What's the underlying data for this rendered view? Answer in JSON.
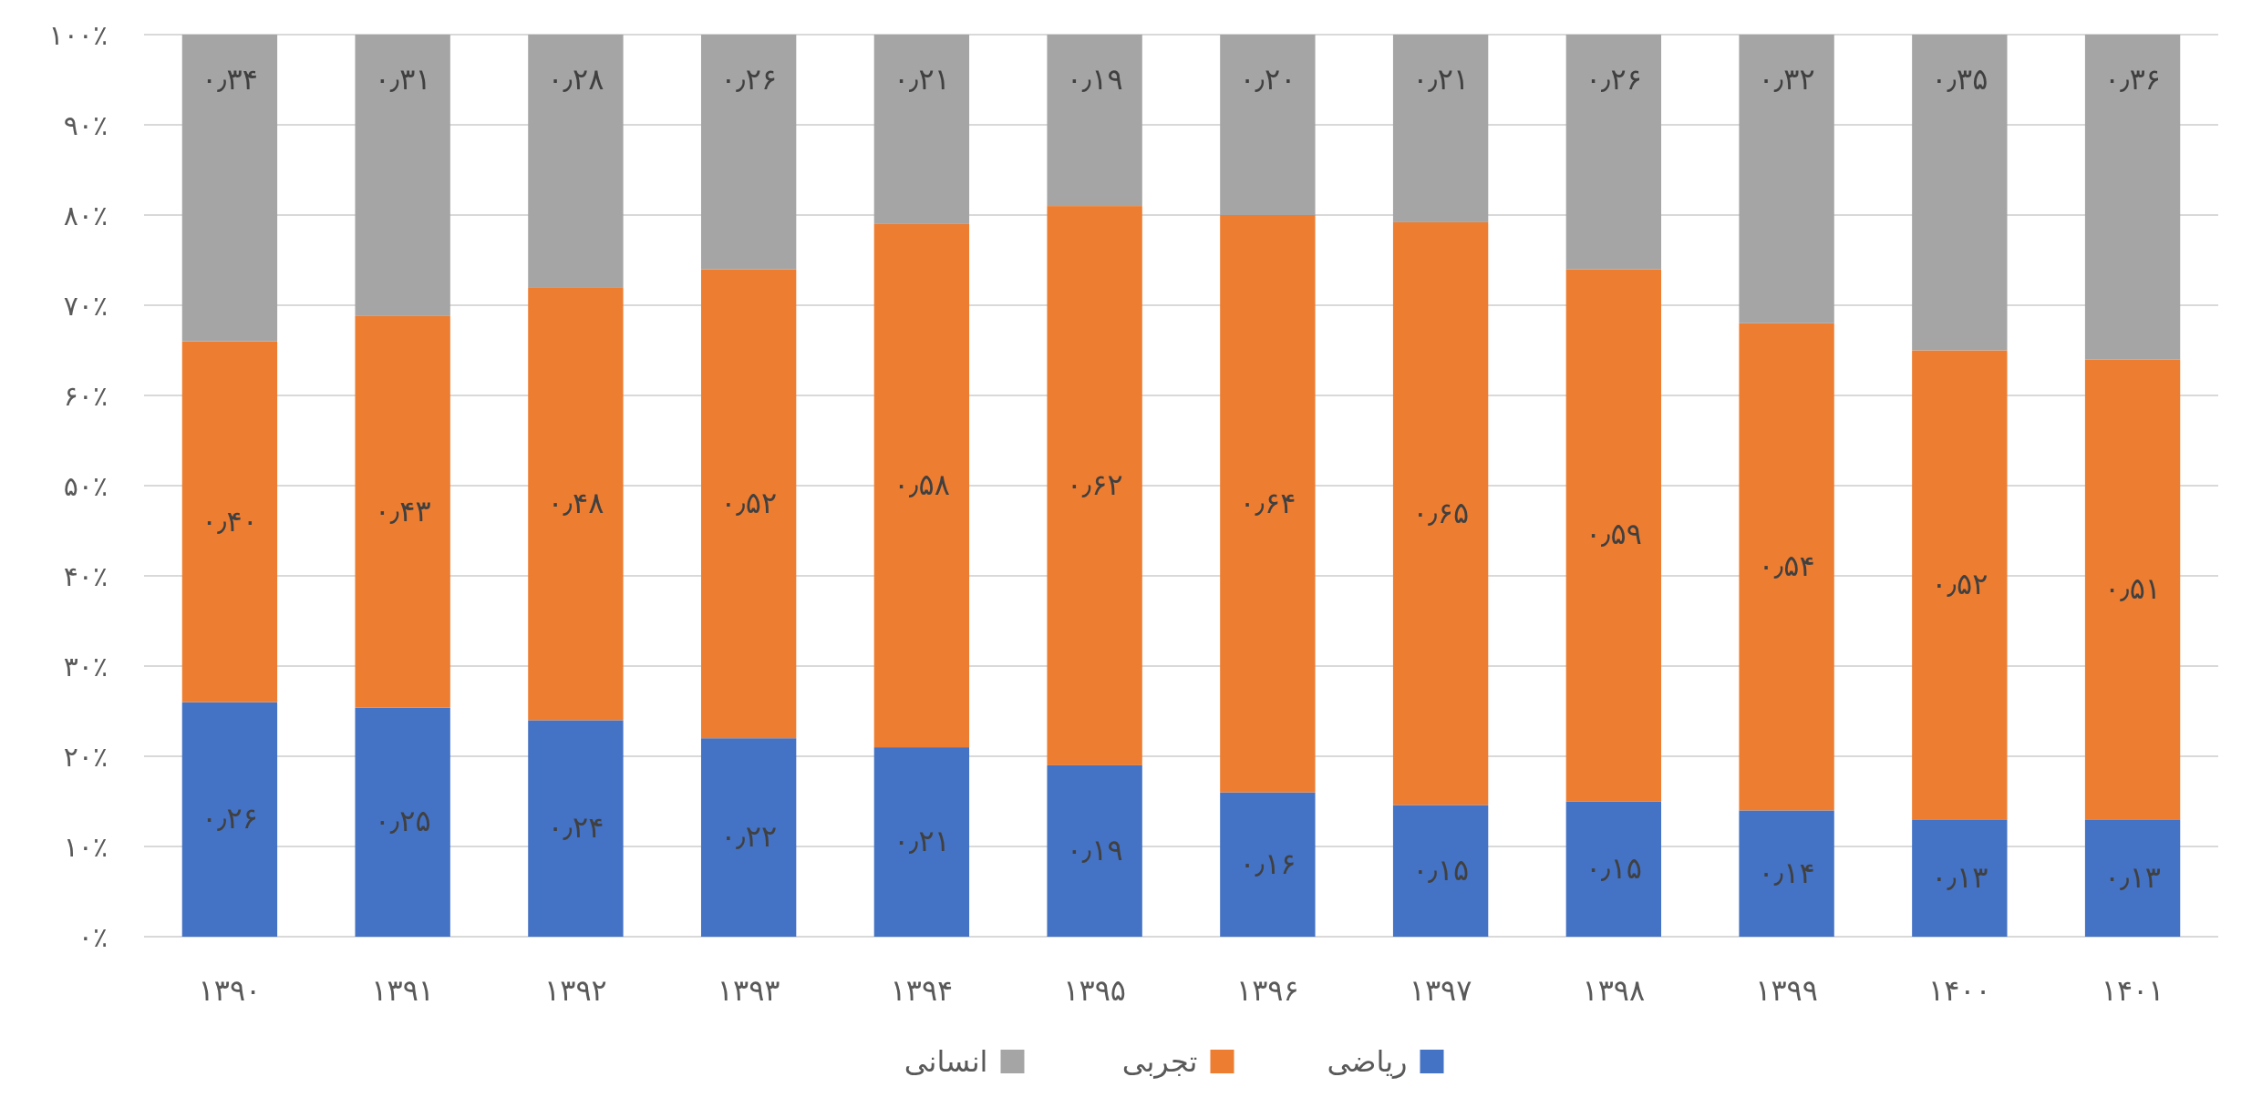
{
  "chart_data": {
    "type": "bar",
    "stacked": true,
    "categories": [
      "۱۳۹۰",
      "۱۳۹۱",
      "۱۳۹۲",
      "۱۳۹۳",
      "۱۳۹۴",
      "۱۳۹۵",
      "۱۳۹۶",
      "۱۳۹۷",
      "۱۳۹۸",
      "۱۳۹۹",
      "۱۴۰۰",
      "۱۴۰۱"
    ],
    "series": [
      {
        "name": "ریاضی",
        "color": "#4472c4",
        "values": [
          26,
          25.4,
          24,
          22,
          21,
          19,
          16,
          14.6,
          15,
          14,
          13,
          13
        ],
        "value_labels": [
          "۰٫۲۶",
          "۰٫۲۵",
          "۰٫۲۴",
          "۰٫۲۲",
          "۰٫۲۱",
          "۰٫۱۹",
          "۰٫۱۶",
          "۰٫۱۵",
          "۰٫۱۵",
          "۰٫۱۴",
          "۰٫۱۳",
          "۰٫۱۳"
        ]
      },
      {
        "name": "تجربی",
        "color": "#ed7d31",
        "values": [
          40,
          43.4,
          48,
          52,
          58,
          62,
          64,
          64.6,
          59,
          54,
          52,
          51
        ],
        "value_labels": [
          "۰٫۴۰",
          "۰٫۴۳",
          "۰٫۴۸",
          "۰٫۵۲",
          "۰٫۵۸",
          "۰٫۶۲",
          "۰٫۶۴",
          "۰٫۶۵",
          "۰٫۵۹",
          "۰٫۵۴",
          "۰٫۵۲",
          "۰٫۵۱"
        ]
      },
      {
        "name": "انسانی",
        "color": "#a5a5a5",
        "values": [
          34,
          31.2,
          28,
          26,
          21,
          19,
          20,
          20.8,
          26,
          32,
          35,
          36
        ],
        "value_labels": [
          "۰٫۳۴",
          "۰٫۳۱",
          "۰٫۲۸",
          "۰٫۲۶",
          "۰٫۲۱",
          "۰٫۱۹",
          "۰٫۲۰",
          "۰٫۲۱",
          "۰٫۲۶",
          "۰٫۳۲",
          "۰٫۳۵",
          "۰٫۳۶"
        ]
      }
    ],
    "ylim": [
      0,
      100
    ],
    "yticks": [
      {
        "value": 0,
        "label": "۰٪"
      },
      {
        "value": 10,
        "label": "۱۰٪"
      },
      {
        "value": 20,
        "label": "۲۰٪"
      },
      {
        "value": 30,
        "label": "۳۰٪"
      },
      {
        "value": 40,
        "label": "۴۰٪"
      },
      {
        "value": 50,
        "label": "۵۰٪"
      },
      {
        "value": 60,
        "label": "۶۰٪"
      },
      {
        "value": 70,
        "label": "۷۰٪"
      },
      {
        "value": 80,
        "label": "۸۰٪"
      },
      {
        "value": 90,
        "label": "۹۰٪"
      },
      {
        "value": 100,
        "label": "۱۰۰٪"
      }
    ],
    "grid": "y",
    "legend": "bottom"
  }
}
